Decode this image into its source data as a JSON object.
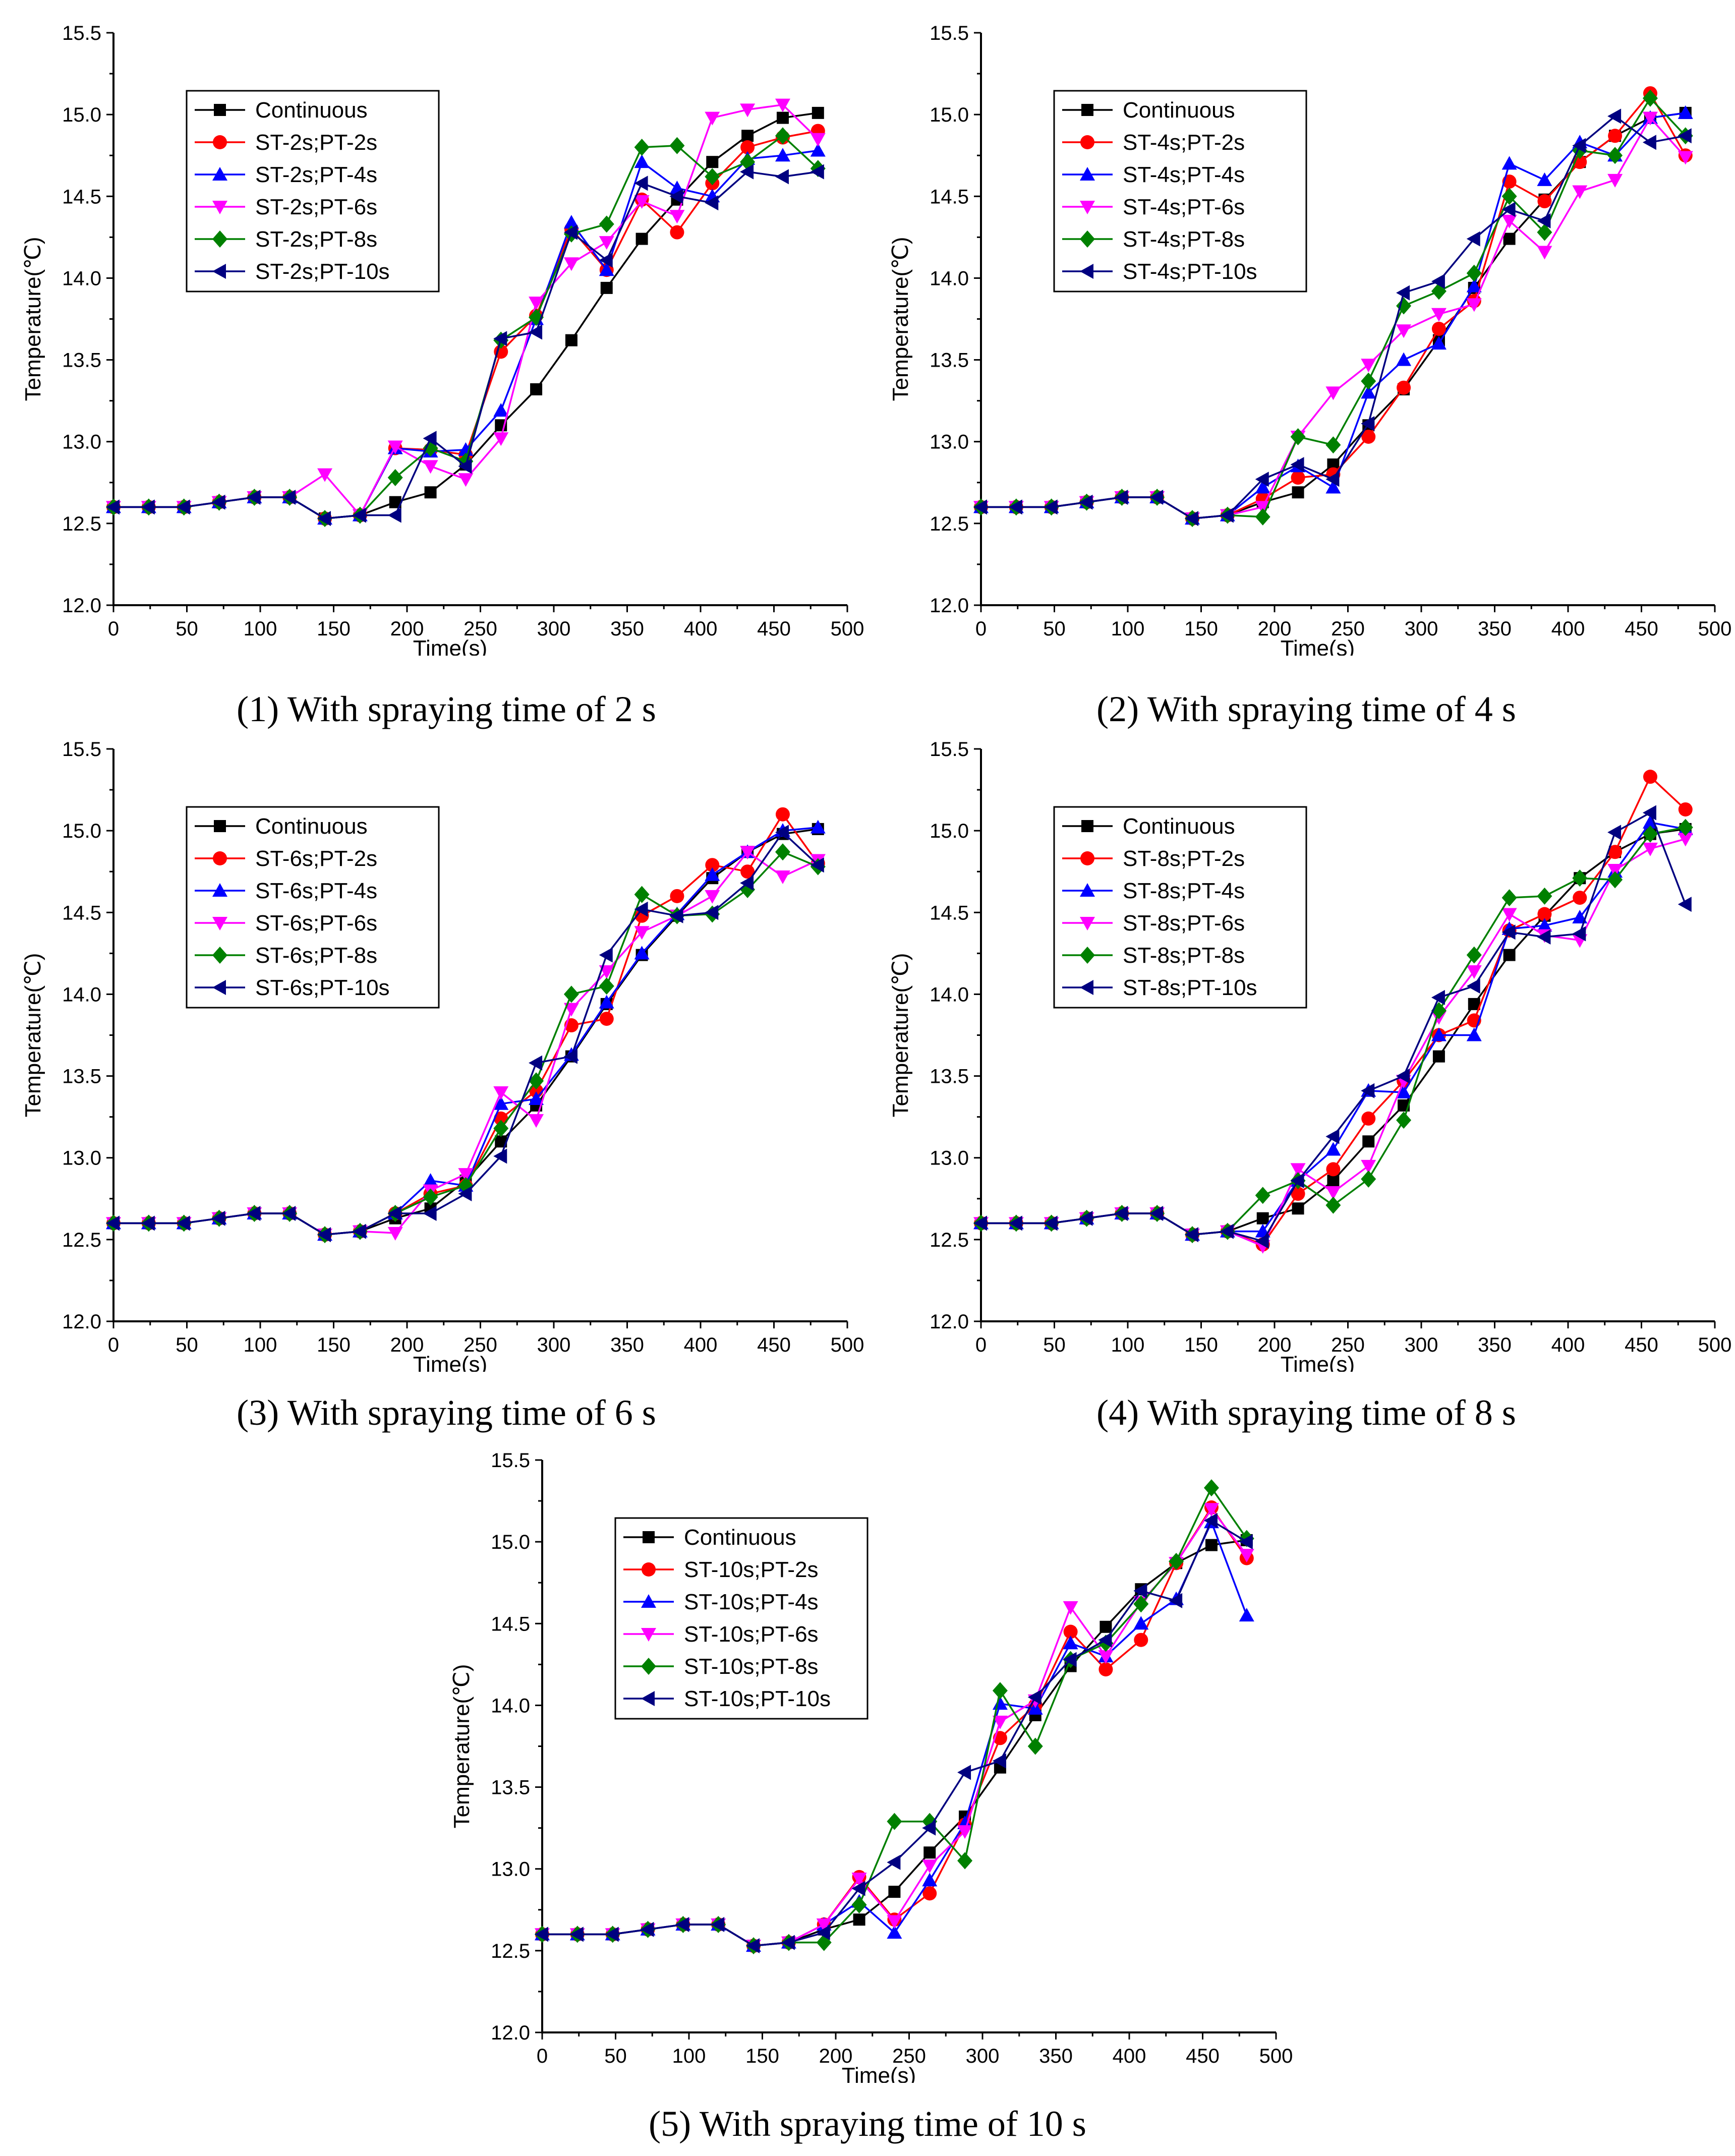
{
  "figure": {
    "x_values": [
      0,
      24,
      48,
      72,
      96,
      120,
      144,
      168,
      192,
      216,
      240,
      264,
      288,
      312,
      336,
      360,
      384,
      408,
      432,
      456,
      480
    ],
    "colors": {
      "continuous": "#000000",
      "pt2": "#ff0000",
      "pt4": "#0000ff",
      "pt6": "#ff00ff",
      "pt8": "#008000",
      "pt10": "#000080"
    },
    "markers": {
      "continuous": "square",
      "pt2": "circle",
      "pt4": "triangle-up",
      "pt6": "triangle-down",
      "pt8": "diamond",
      "pt10": "triangle-left"
    }
  },
  "chart_data": [
    {
      "type": "line",
      "caption": "(1) With spraying time of 2 s",
      "xlabel": "Time(s)",
      "ylabel": "Temperature(℃)",
      "xlim": [
        0,
        500
      ],
      "ylim": [
        12.0,
        15.5
      ],
      "xticks": [
        "0",
        "50",
        "100",
        "150",
        "200",
        "250",
        "300",
        "350",
        "400",
        "450",
        "500"
      ],
      "yticks": [
        "12.0",
        "12.5",
        "13.0",
        "13.5",
        "14.0",
        "14.5",
        "15.0",
        "15.5"
      ],
      "series": [
        {
          "name": "Continuous",
          "key": "continuous",
          "values": [
            12.6,
            12.6,
            12.6,
            12.63,
            12.66,
            12.66,
            12.53,
            12.55,
            12.63,
            12.69,
            12.86,
            13.1,
            13.32,
            13.62,
            13.94,
            14.24,
            14.48,
            14.71,
            14.87,
            14.98,
            15.01
          ]
        },
        {
          "name": "ST-2s;PT-2s",
          "key": "pt2",
          "values": [
            12.6,
            12.6,
            12.6,
            12.63,
            12.66,
            12.66,
            12.53,
            12.55,
            12.96,
            12.95,
            12.92,
            13.55,
            13.77,
            14.3,
            14.05,
            14.48,
            14.28,
            14.58,
            14.8,
            14.86,
            14.9
          ]
        },
        {
          "name": "ST-2s;PT-4s",
          "key": "pt4",
          "values": [
            12.6,
            12.6,
            12.6,
            12.63,
            12.66,
            12.66,
            12.53,
            12.55,
            12.96,
            12.94,
            12.95,
            13.19,
            13.75,
            14.34,
            14.05,
            14.71,
            14.55,
            14.5,
            14.73,
            14.75,
            14.78
          ]
        },
        {
          "name": "ST-2s;PT-6s",
          "key": "pt6",
          "values": [
            12.6,
            12.6,
            12.6,
            12.63,
            12.66,
            12.66,
            12.8,
            12.55,
            12.97,
            12.85,
            12.77,
            13.02,
            13.85,
            14.09,
            14.22,
            14.47,
            14.38,
            14.98,
            15.03,
            15.06,
            14.85
          ]
        },
        {
          "name": "ST-2s;PT-8s",
          "key": "pt8",
          "values": [
            12.6,
            12.6,
            12.6,
            12.63,
            12.66,
            12.66,
            12.53,
            12.55,
            12.78,
            12.96,
            12.88,
            13.62,
            13.76,
            14.27,
            14.33,
            14.8,
            14.81,
            14.62,
            14.71,
            14.87,
            14.67
          ]
        },
        {
          "name": "ST-2s;PT-10s",
          "key": "pt10",
          "values": [
            12.6,
            12.6,
            12.6,
            12.63,
            12.66,
            12.66,
            12.53,
            12.55,
            12.55,
            13.02,
            12.85,
            13.63,
            13.67,
            14.28,
            14.11,
            14.58,
            14.5,
            14.46,
            14.65,
            14.62,
            14.65
          ]
        }
      ]
    },
    {
      "type": "line",
      "caption": "(2) With spraying time of 4 s",
      "xlabel": "Time(s)",
      "ylabel": "Temperature(℃)",
      "xlim": [
        0,
        500
      ],
      "ylim": [
        12.0,
        15.5
      ],
      "xticks": [
        "0",
        "50",
        "100",
        "150",
        "200",
        "250",
        "300",
        "350",
        "400",
        "450",
        "500"
      ],
      "yticks": [
        "12.0",
        "12.5",
        "13.0",
        "13.5",
        "14.0",
        "14.5",
        "15.0",
        "15.5"
      ],
      "series": [
        {
          "name": "Continuous",
          "key": "continuous",
          "values": [
            12.6,
            12.6,
            12.6,
            12.63,
            12.66,
            12.66,
            12.53,
            12.55,
            12.63,
            12.69,
            12.86,
            13.1,
            13.32,
            13.62,
            13.94,
            14.24,
            14.48,
            14.71,
            14.87,
            14.98,
            15.01
          ]
        },
        {
          "name": "ST-4s;PT-2s",
          "key": "pt2",
          "values": [
            12.6,
            12.6,
            12.6,
            12.63,
            12.66,
            12.66,
            12.53,
            12.55,
            12.65,
            12.78,
            12.8,
            13.03,
            13.33,
            13.69,
            13.86,
            14.59,
            14.47,
            14.71,
            14.87,
            15.13,
            14.75
          ]
        },
        {
          "name": "ST-4s;PT-4s",
          "key": "pt4",
          "values": [
            12.6,
            12.6,
            12.6,
            12.63,
            12.66,
            12.66,
            12.53,
            12.55,
            12.72,
            12.85,
            12.72,
            13.3,
            13.5,
            13.6,
            13.95,
            14.7,
            14.6,
            14.83,
            14.75,
            14.98,
            15.01
          ]
        },
        {
          "name": "ST-4s;PT-6s",
          "key": "pt6",
          "values": [
            12.6,
            12.6,
            12.6,
            12.63,
            12.66,
            12.66,
            12.53,
            12.55,
            12.6,
            13.03,
            13.3,
            13.47,
            13.68,
            13.78,
            13.84,
            14.35,
            14.16,
            14.53,
            14.6,
            14.98,
            14.74
          ]
        },
        {
          "name": "ST-4s;PT-8s",
          "key": "pt8",
          "values": [
            12.6,
            12.6,
            12.6,
            12.63,
            12.66,
            12.66,
            12.53,
            12.55,
            12.54,
            13.03,
            12.98,
            13.37,
            13.83,
            13.92,
            14.03,
            14.5,
            14.28,
            14.78,
            14.75,
            15.1,
            14.87
          ]
        },
        {
          "name": "ST-4s;PT-10s",
          "key": "pt10",
          "values": [
            12.6,
            12.6,
            12.6,
            12.63,
            12.66,
            12.66,
            12.53,
            12.55,
            12.77,
            12.86,
            12.77,
            13.11,
            13.91,
            13.98,
            14.24,
            14.42,
            14.35,
            14.81,
            14.99,
            14.83,
            14.87
          ]
        }
      ]
    },
    {
      "type": "line",
      "caption": "(3) With spraying time of 6 s",
      "xlabel": "Time(s)",
      "ylabel": "Temperature(℃)",
      "xlim": [
        0,
        500
      ],
      "ylim": [
        12.0,
        15.5
      ],
      "xticks": [
        "0",
        "50",
        "100",
        "150",
        "200",
        "250",
        "300",
        "350",
        "400",
        "450",
        "500"
      ],
      "yticks": [
        "12.0",
        "12.5",
        "13.0",
        "13.5",
        "14.0",
        "14.5",
        "15.0",
        "15.5"
      ],
      "series": [
        {
          "name": "Continuous",
          "key": "continuous",
          "values": [
            12.6,
            12.6,
            12.6,
            12.63,
            12.66,
            12.66,
            12.53,
            12.55,
            12.63,
            12.69,
            12.86,
            13.1,
            13.32,
            13.62,
            13.94,
            14.24,
            14.48,
            14.71,
            14.87,
            14.98,
            15.01
          ]
        },
        {
          "name": "ST-6s;PT-2s",
          "key": "pt2",
          "values": [
            12.6,
            12.6,
            12.6,
            12.63,
            12.66,
            12.66,
            12.53,
            12.55,
            12.66,
            12.78,
            12.83,
            13.24,
            13.41,
            13.81,
            13.85,
            14.48,
            14.6,
            14.79,
            14.75,
            15.1,
            14.8
          ]
        },
        {
          "name": "ST-6s;PT-4s",
          "key": "pt4",
          "values": [
            12.6,
            12.6,
            12.6,
            12.63,
            12.66,
            12.66,
            12.53,
            12.55,
            12.66,
            12.86,
            12.83,
            13.33,
            13.36,
            13.63,
            13.95,
            14.25,
            14.49,
            14.73,
            14.87,
            15.0,
            15.02
          ]
        },
        {
          "name": "ST-6s;PT-6s",
          "key": "pt6",
          "values": [
            12.6,
            12.6,
            12.6,
            12.63,
            12.66,
            12.66,
            12.53,
            12.55,
            12.54,
            12.8,
            12.9,
            13.4,
            13.23,
            13.91,
            14.14,
            14.38,
            14.48,
            14.6,
            14.87,
            14.72,
            14.82
          ]
        },
        {
          "name": "ST-6s;PT-8s",
          "key": "pt8",
          "values": [
            12.6,
            12.6,
            12.6,
            12.63,
            12.66,
            12.66,
            12.53,
            12.55,
            12.66,
            12.76,
            12.83,
            13.18,
            13.47,
            14.0,
            14.05,
            14.61,
            14.48,
            14.49,
            14.64,
            14.87,
            14.78
          ]
        },
        {
          "name": "ST-6s;PT-10s",
          "key": "pt10",
          "values": [
            12.6,
            12.6,
            12.6,
            12.63,
            12.66,
            12.66,
            12.53,
            12.55,
            12.66,
            12.66,
            12.78,
            13.01,
            13.58,
            13.62,
            14.24,
            14.52,
            14.48,
            14.5,
            14.68,
            14.99,
            14.79
          ]
        }
      ]
    },
    {
      "type": "line",
      "caption": "(4) With spraying time of 8 s",
      "xlabel": "Time(s)",
      "ylabel": "Temperature(℃)",
      "xlim": [
        0,
        500
      ],
      "ylim": [
        12.0,
        15.5
      ],
      "xticks": [
        "0",
        "50",
        "100",
        "150",
        "200",
        "250",
        "300",
        "350",
        "400",
        "450",
        "500"
      ],
      "yticks": [
        "12.0",
        "12.5",
        "13.0",
        "13.5",
        "14.0",
        "14.5",
        "15.0",
        "15.5"
      ],
      "series": [
        {
          "name": "Continuous",
          "key": "continuous",
          "values": [
            12.6,
            12.6,
            12.6,
            12.63,
            12.66,
            12.66,
            12.53,
            12.55,
            12.63,
            12.69,
            12.86,
            13.1,
            13.32,
            13.62,
            13.94,
            14.24,
            14.48,
            14.71,
            14.87,
            14.98,
            15.01
          ]
        },
        {
          "name": "ST-8s;PT-2s",
          "key": "pt2",
          "values": [
            12.6,
            12.6,
            12.6,
            12.63,
            12.66,
            12.66,
            12.53,
            12.55,
            12.47,
            12.78,
            12.93,
            13.24,
            13.47,
            13.75,
            13.84,
            14.39,
            14.49,
            14.59,
            14.87,
            15.33,
            15.13
          ]
        },
        {
          "name": "ST-8s;PT-4s",
          "key": "pt4",
          "values": [
            12.6,
            12.6,
            12.6,
            12.63,
            12.66,
            12.66,
            12.53,
            12.55,
            12.55,
            12.86,
            13.05,
            13.41,
            13.4,
            13.75,
            13.75,
            14.4,
            14.42,
            14.47,
            14.75,
            15.05,
            15.01
          ]
        },
        {
          "name": "ST-8s;PT-6s",
          "key": "pt6",
          "values": [
            12.6,
            12.6,
            12.6,
            12.63,
            12.66,
            12.66,
            12.53,
            12.55,
            12.46,
            12.93,
            12.79,
            12.95,
            13.47,
            13.86,
            14.14,
            14.49,
            14.36,
            14.33,
            14.76,
            14.89,
            14.95
          ]
        },
        {
          "name": "ST-8s;PT-8s",
          "key": "pt8",
          "values": [
            12.6,
            12.6,
            12.6,
            12.63,
            12.66,
            12.66,
            12.53,
            12.55,
            12.77,
            12.86,
            12.71,
            12.87,
            13.23,
            13.9,
            14.24,
            14.59,
            14.6,
            14.71,
            14.7,
            14.98,
            15.02
          ]
        },
        {
          "name": "ST-8s;PT-10s",
          "key": "pt10",
          "values": [
            12.6,
            12.6,
            12.6,
            12.63,
            12.66,
            12.66,
            12.53,
            12.55,
            12.49,
            12.86,
            13.13,
            13.41,
            13.5,
            13.98,
            14.05,
            14.38,
            14.35,
            14.37,
            14.99,
            15.11,
            14.55
          ]
        }
      ]
    },
    {
      "type": "line",
      "caption": "(5) With spraying time of 10 s",
      "xlabel": "Time(s)",
      "ylabel": "Temperature(℃)",
      "xlim": [
        0,
        500
      ],
      "ylim": [
        12.0,
        15.5
      ],
      "xticks": [
        "0",
        "50",
        "100",
        "150",
        "200",
        "250",
        "300",
        "350",
        "400",
        "450",
        "500"
      ],
      "yticks": [
        "12.0",
        "12.5",
        "13.0",
        "13.5",
        "14.0",
        "14.5",
        "15.0",
        "15.5"
      ],
      "series": [
        {
          "name": "Continuous",
          "key": "continuous",
          "values": [
            12.6,
            12.6,
            12.6,
            12.63,
            12.66,
            12.66,
            12.53,
            12.55,
            12.63,
            12.69,
            12.86,
            13.1,
            13.32,
            13.62,
            13.94,
            14.24,
            14.48,
            14.71,
            14.87,
            14.98,
            15.01
          ]
        },
        {
          "name": "ST-10s;PT-2s",
          "key": "pt2",
          "values": [
            12.6,
            12.6,
            12.6,
            12.63,
            12.66,
            12.66,
            12.53,
            12.55,
            12.66,
            12.95,
            12.69,
            12.85,
            13.27,
            13.8,
            14.0,
            14.45,
            14.22,
            14.4,
            14.87,
            15.21,
            14.9
          ]
        },
        {
          "name": "ST-10s;PT-4s",
          "key": "pt4",
          "values": [
            12.6,
            12.6,
            12.6,
            12.63,
            12.66,
            12.66,
            12.53,
            12.55,
            12.66,
            12.8,
            12.61,
            12.93,
            13.28,
            14.01,
            13.98,
            14.38,
            14.3,
            14.5,
            14.65,
            15.12,
            14.55
          ]
        },
        {
          "name": "ST-10s;PT-6s",
          "key": "pt6",
          "values": [
            12.6,
            12.6,
            12.6,
            12.63,
            12.66,
            12.66,
            12.53,
            12.55,
            12.66,
            12.94,
            12.68,
            13.02,
            13.23,
            13.9,
            14.03,
            14.6,
            14.3,
            14.63,
            14.87,
            15.2,
            14.92
          ]
        },
        {
          "name": "ST-10s;PT-8s",
          "key": "pt8",
          "values": [
            12.6,
            12.6,
            12.6,
            12.63,
            12.66,
            12.66,
            12.53,
            12.55,
            12.55,
            12.78,
            13.29,
            13.29,
            13.05,
            14.09,
            13.75,
            14.28,
            14.38,
            14.62,
            14.88,
            15.33,
            15.02
          ]
        },
        {
          "name": "ST-10s;PT-10s",
          "key": "pt10",
          "values": [
            12.6,
            12.6,
            12.6,
            12.63,
            12.66,
            12.66,
            12.53,
            12.55,
            12.61,
            12.88,
            13.04,
            13.25,
            13.59,
            13.66,
            14.05,
            14.28,
            14.4,
            14.7,
            14.64,
            15.13,
            15.0
          ]
        }
      ]
    }
  ]
}
